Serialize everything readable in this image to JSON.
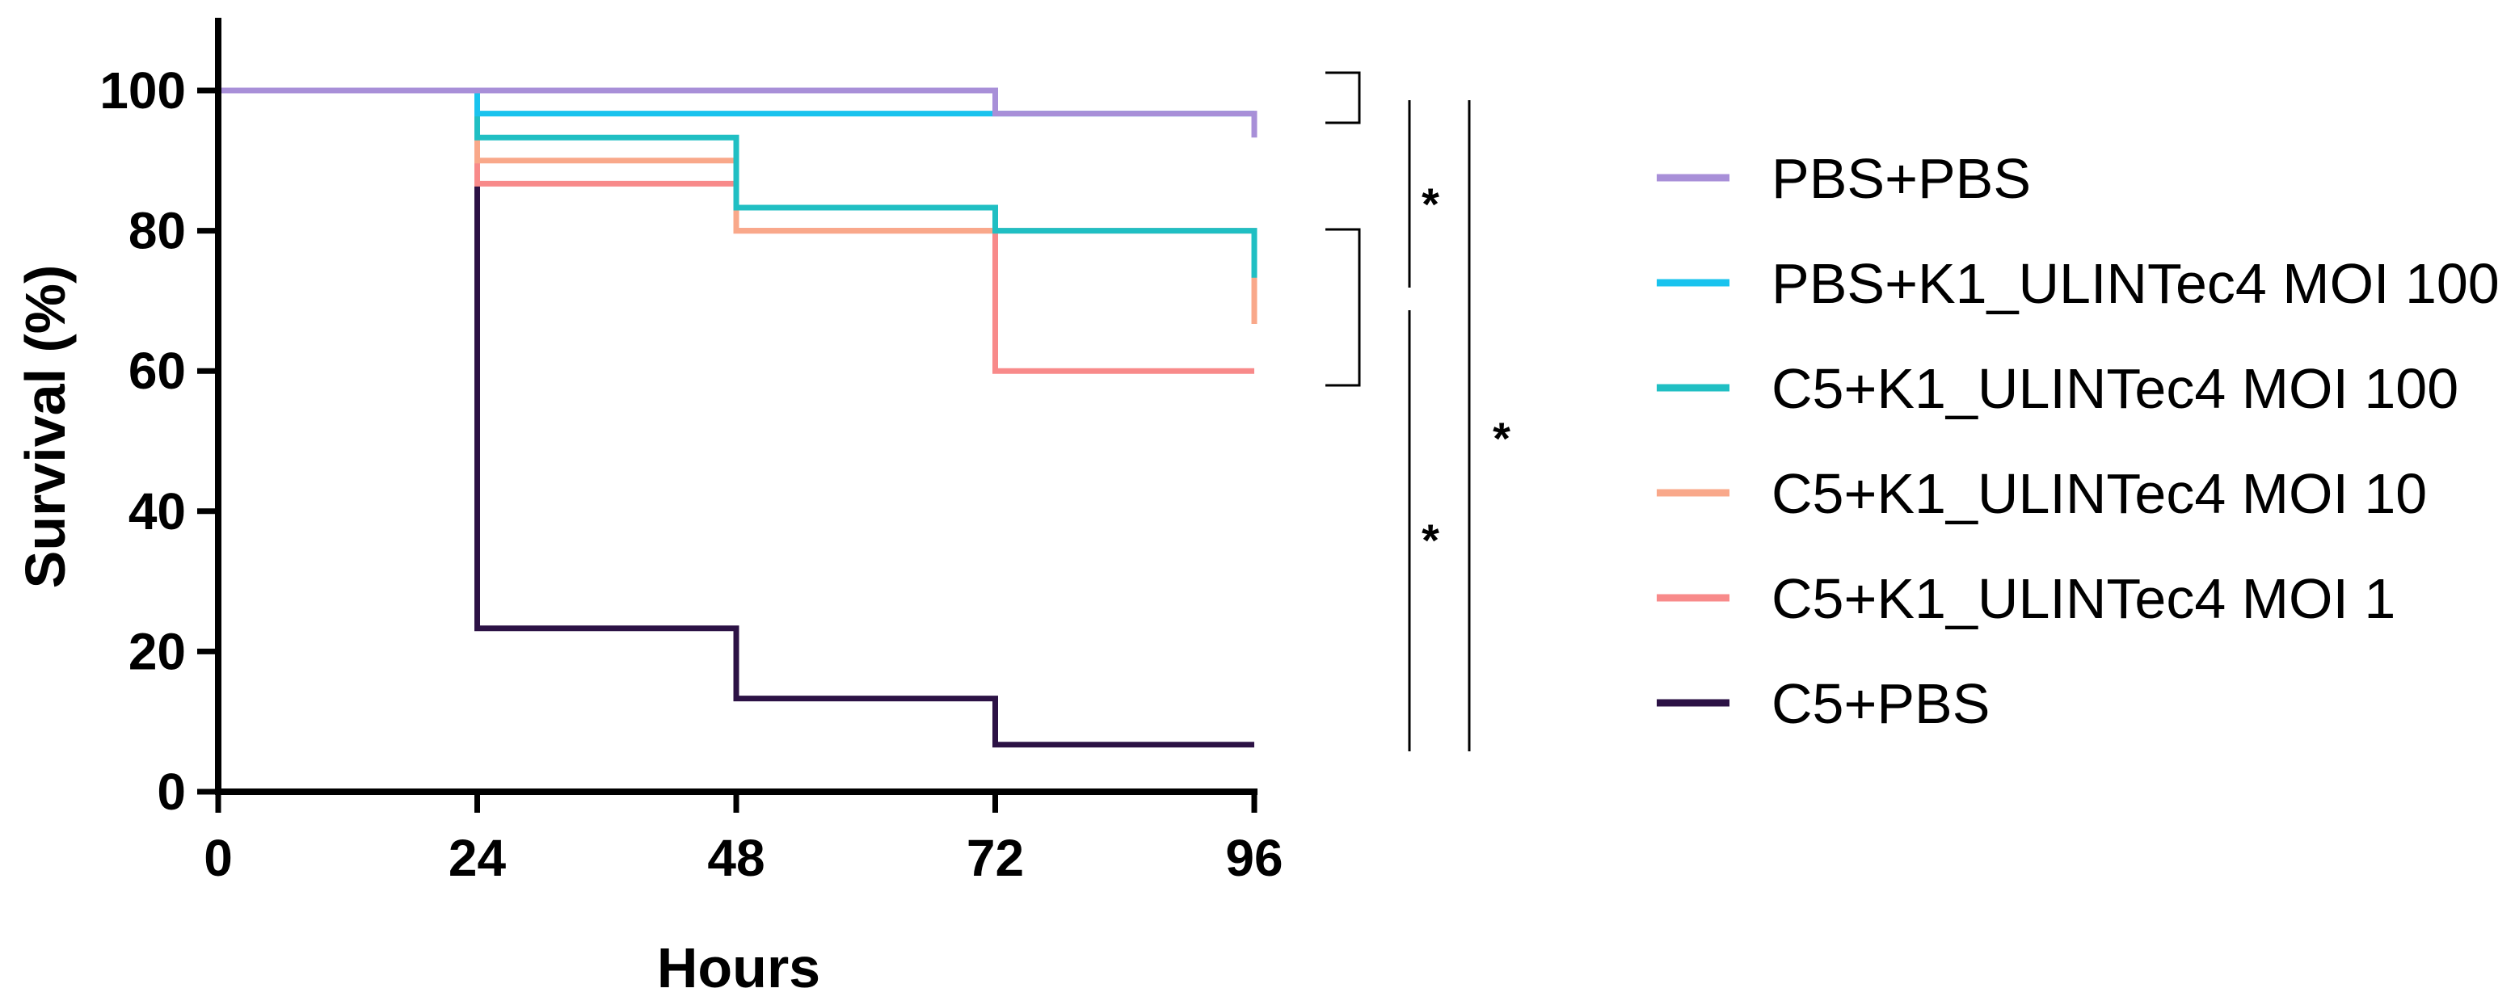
{
  "chart_data": {
    "type": "line",
    "subtype": "survival-step",
    "xlabel": "Hours",
    "ylabel": "Survival (%)",
    "xlim": [
      0,
      96
    ],
    "ylim": [
      0,
      100
    ],
    "xticks": [
      0,
      24,
      48,
      72,
      96
    ],
    "yticks": [
      0,
      20,
      40,
      60,
      80,
      100
    ],
    "grid": false,
    "legend_position": "right",
    "series": [
      {
        "name": "PBS+PBS",
        "color": "#a88fd8",
        "points": [
          [
            0,
            100
          ],
          [
            72,
            100
          ],
          [
            72,
            96.7
          ],
          [
            96,
            96.7
          ],
          [
            96,
            93.3
          ]
        ]
      },
      {
        "name": "PBS+K1_ULINTec4 MOI 100",
        "color": "#19c3ee",
        "points": [
          [
            0,
            100
          ],
          [
            24,
            100
          ],
          [
            24,
            96.7
          ],
          [
            96,
            96.7
          ]
        ]
      },
      {
        "name": "C5+K1_ULINTec4 MOI 100",
        "color": "#20bfc3",
        "points": [
          [
            0,
            100
          ],
          [
            24,
            100
          ],
          [
            24,
            93.3
          ],
          [
            48,
            93.3
          ],
          [
            48,
            83.3
          ],
          [
            72,
            83.3
          ],
          [
            72,
            80
          ],
          [
            96,
            80
          ],
          [
            96,
            73.3
          ]
        ]
      },
      {
        "name": "C5+K1_ULINTec4 MOI 10",
        "color": "#f9a88a",
        "points": [
          [
            0,
            100
          ],
          [
            24,
            100
          ],
          [
            24,
            90
          ],
          [
            48,
            90
          ],
          [
            48,
            80
          ],
          [
            96,
            80
          ],
          [
            96,
            66.7
          ]
        ]
      },
      {
        "name": "C5+K1_ULINTec4 MOI 1",
        "color": "#f88a8a",
        "points": [
          [
            0,
            100
          ],
          [
            24,
            100
          ],
          [
            24,
            86.7
          ],
          [
            48,
            86.7
          ],
          [
            48,
            80
          ],
          [
            72,
            80
          ],
          [
            72,
            60
          ],
          [
            96,
            60
          ]
        ]
      },
      {
        "name": "C5+PBS",
        "color": "#2c1245",
        "points": [
          [
            0,
            100
          ],
          [
            24,
            100
          ],
          [
            24,
            23.3
          ],
          [
            48,
            23.3
          ],
          [
            48,
            13.3
          ],
          [
            72,
            13.3
          ],
          [
            72,
            6.7
          ],
          [
            96,
            6.7
          ]
        ]
      }
    ],
    "significance_marks": [
      "*",
      "*",
      "*"
    ]
  }
}
